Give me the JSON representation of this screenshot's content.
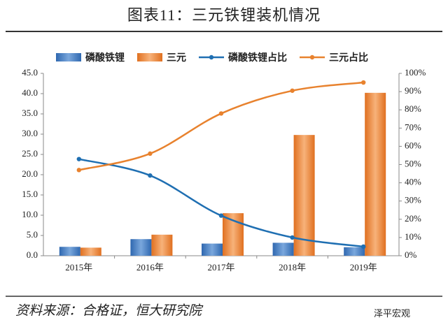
{
  "title": "图表11：三元铁锂装机情况",
  "source": "资料来源：合格证，恒大研究院",
  "watermark": "泽平宏观",
  "chart_data": {
    "type": "bar",
    "categories": [
      "2015年",
      "2016年",
      "2017年",
      "2018年",
      "2019年"
    ],
    "series": [
      {
        "name": "磷酸铁锂",
        "type": "bar",
        "color": "#4a7ebf",
        "values": [
          2.2,
          4.1,
          3.0,
          3.2,
          2.1
        ]
      },
      {
        "name": "三元",
        "type": "bar",
        "color": "#ed8a3f",
        "values": [
          2.0,
          5.2,
          10.5,
          29.8,
          40.2
        ]
      },
      {
        "name": "磷酸铁锂占比",
        "type": "line",
        "axis": "y2",
        "color": "#1f6fb2",
        "values": [
          53,
          44,
          22,
          10,
          5
        ]
      },
      {
        "name": "三元占比",
        "type": "line",
        "axis": "y2",
        "color": "#e8822e",
        "values": [
          47,
          56,
          78,
          90.5,
          95
        ]
      }
    ],
    "ylim": [
      0,
      45
    ],
    "yticks": [
      {
        "value": 0,
        "label": "0.0"
      },
      {
        "value": 5,
        "label": "5.0"
      },
      {
        "value": 10,
        "label": "10.0"
      },
      {
        "value": 15,
        "label": "15.0"
      },
      {
        "value": 20,
        "label": "20.0"
      },
      {
        "value": 25,
        "label": "25.0"
      },
      {
        "value": 30,
        "label": "30.0"
      },
      {
        "value": 35,
        "label": "35.0"
      },
      {
        "value": 40,
        "label": "40.0"
      },
      {
        "value": 45,
        "label": "45.0"
      }
    ],
    "y2lim": [
      0,
      100
    ],
    "y2ticks": [
      {
        "value": 0,
        "label": "0%"
      },
      {
        "value": 10,
        "label": "10%"
      },
      {
        "value": 20,
        "label": "20%"
      },
      {
        "value": 30,
        "label": "30%"
      },
      {
        "value": 40,
        "label": "40%"
      },
      {
        "value": 50,
        "label": "50%"
      },
      {
        "value": 60,
        "label": "60%"
      },
      {
        "value": 70,
        "label": "70%"
      },
      {
        "value": 80,
        "label": "80%"
      },
      {
        "value": 90,
        "label": "90%"
      },
      {
        "value": 100,
        "label": "100%"
      }
    ],
    "grid": false
  }
}
